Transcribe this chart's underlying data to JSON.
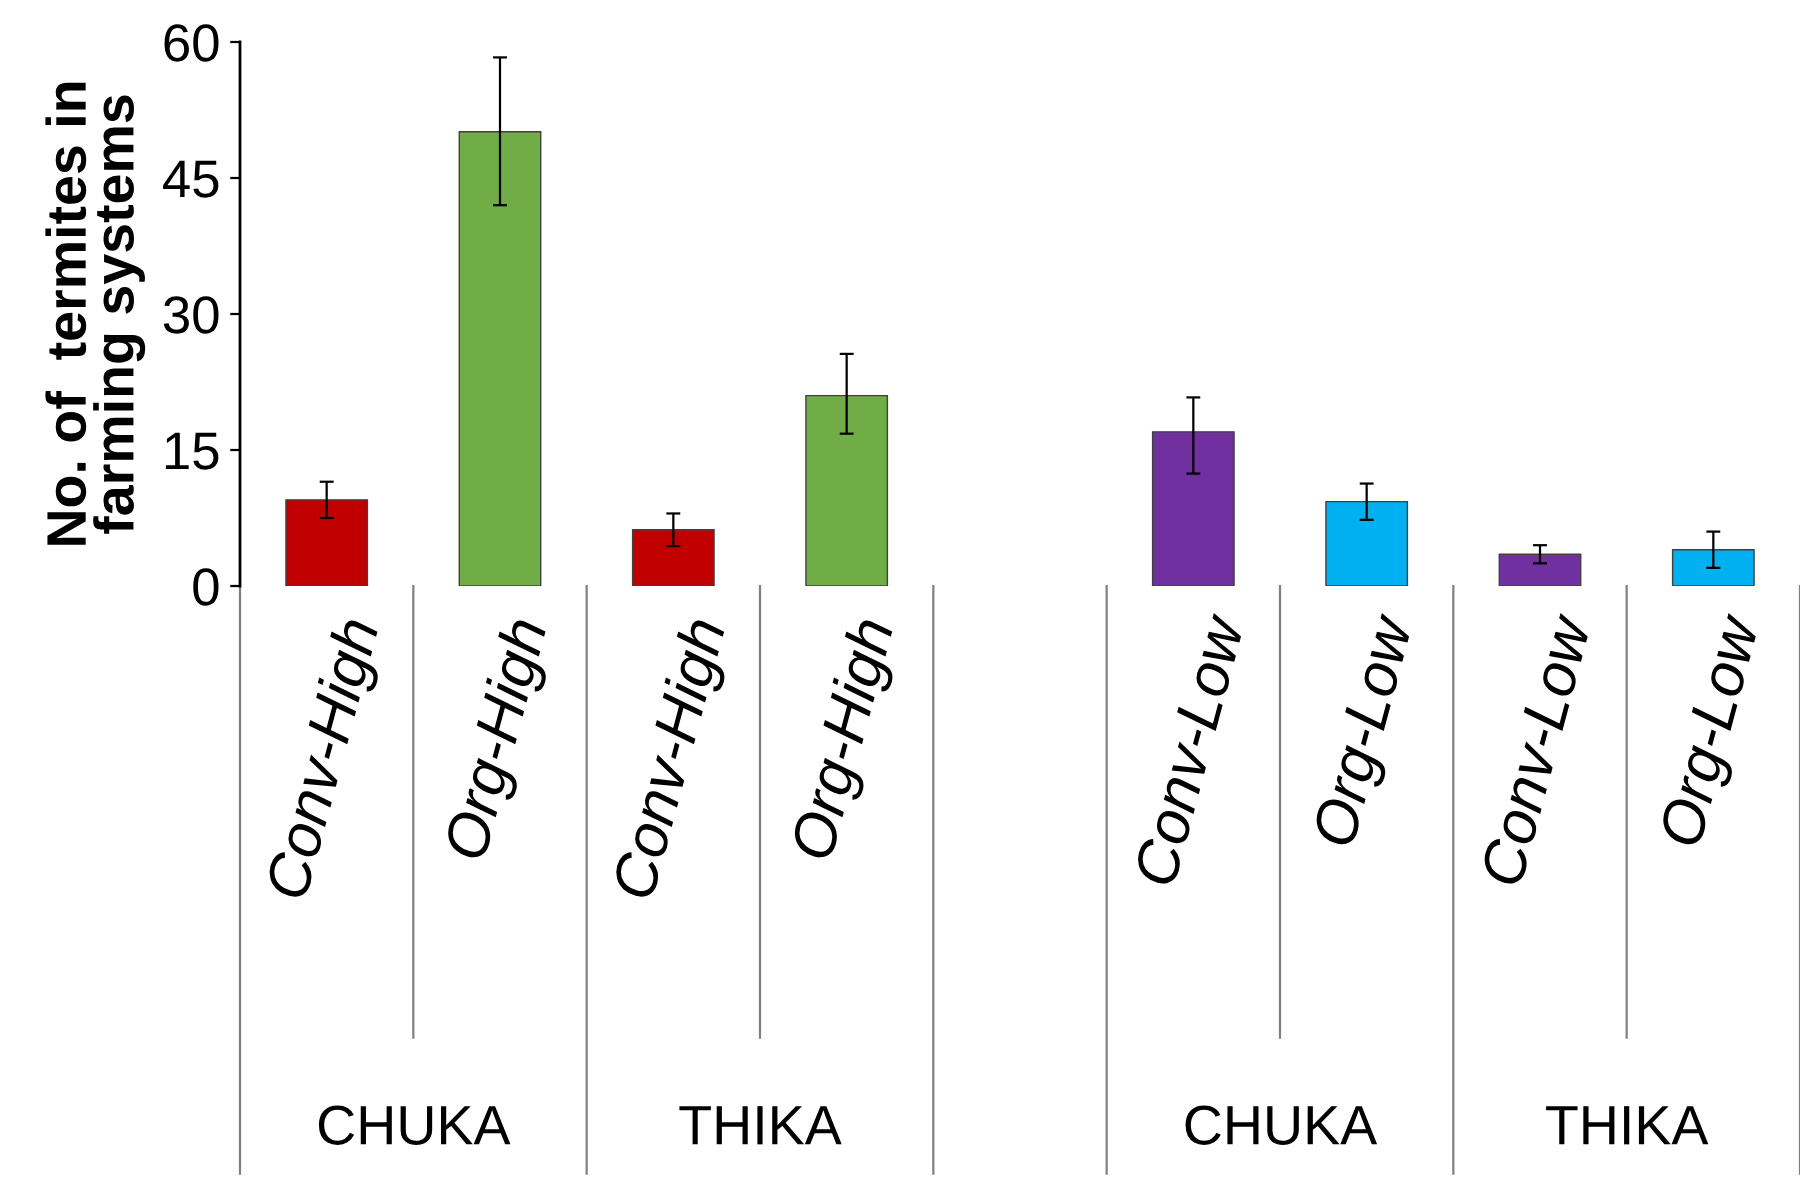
{
  "chart_data": {
    "type": "bar",
    "ylabel": "No. of  termites in\nfarming systems",
    "categories": [
      "Conv-High",
      "Org-High",
      "Conv-High",
      "Org-High",
      null,
      "Conv-Low",
      "Org-Low",
      "Conv-Low",
      "Org-Low"
    ],
    "values": [
      9.5,
      50.1,
      6.2,
      21,
      null,
      17,
      9.3,
      3.5,
      4
    ],
    "colors": [
      "#c00000",
      "#70ad47",
      "#c00000",
      "#70ad47",
      "#ffffff",
      "#7030a0",
      "#00b0f0",
      "#7030a0",
      "#00b0f0"
    ],
    "errors": [
      2,
      [
        42,
        58.3
      ],
      1.8,
      [
        16.8,
        25.6
      ],
      null,
      [
        12.4,
        20.8
      ],
      2,
      1,
      2
    ],
    "ylim": [
      0,
      60
    ],
    "yticks": [
      0,
      15,
      30,
      45,
      60
    ],
    "annotations": [
      "CHUKA",
      "THIKA",
      "CHUKA",
      "THIKA"
    ],
    "grid": false,
    "legend": false
  }
}
